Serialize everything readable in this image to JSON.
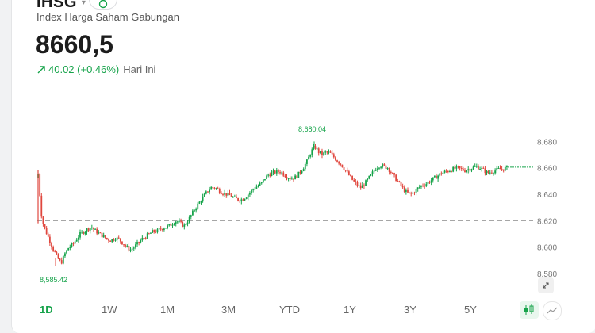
{
  "header": {
    "ticker": "IHSG",
    "name": "Index Harga Saham Gabungan",
    "price": "8660,5",
    "change": "40.02 (+0.46%)",
    "period": "Hari Ini"
  },
  "colors": {
    "up": "#16a34a",
    "down": "#e0473e",
    "accent": "#16a34a"
  },
  "icons": {
    "watch": "watchlist-icon",
    "trend": "arrow-up-right-icon",
    "expand": "expand-icon"
  },
  "chart_data": {
    "type": "candlestick",
    "y_ticks": [
      "8.680",
      "8.660",
      "8.640",
      "8.620",
      "8.600",
      "8.580"
    ],
    "ylim": [
      8577,
      8688
    ],
    "reference_line": 8620,
    "high_label": "8,680.04",
    "low_label": "8,585.42",
    "last": 8660.5,
    "path": [
      8655,
      8620,
      8612,
      8605,
      8598,
      8592,
      8588,
      8595,
      8600,
      8602,
      8606,
      8610,
      8612,
      8614,
      8615,
      8612,
      8610,
      8608,
      8606,
      8605,
      8607,
      8606,
      8603,
      8600,
      8598,
      8600,
      8603,
      8606,
      8608,
      8610,
      8612,
      8612,
      8614,
      8615,
      8616,
      8618,
      8620,
      8618,
      8616,
      8620,
      8625,
      8630,
      8634,
      8638,
      8642,
      8645,
      8645,
      8643,
      8641,
      8640,
      8639,
      8637,
      8636,
      8636,
      8638,
      8641,
      8644,
      8646,
      8648,
      8652,
      8655,
      8656,
      8657,
      8657,
      8655,
      8653,
      8652,
      8653,
      8656,
      8660,
      8665,
      8672,
      8676,
      8672,
      8670,
      8672,
      8671,
      8668,
      8665,
      8662,
      8658,
      8654,
      8650,
      8647,
      8645,
      8648,
      8652,
      8656,
      8660,
      8662,
      8661,
      8660,
      8656,
      8652,
      8648,
      8644,
      8641,
      8640,
      8642,
      8645,
      8647,
      8648,
      8650,
      8652,
      8654,
      8656,
      8657,
      8658,
      8659,
      8660,
      8659,
      8658,
      8659,
      8660,
      8661,
      8660,
      8658,
      8656,
      8657,
      8658,
      8659,
      8659,
      8660
    ]
  },
  "ranges": [
    "1D",
    "1W",
    "1M",
    "3M",
    "YTD",
    "1Y",
    "3Y",
    "5Y"
  ],
  "active_range": "1D"
}
